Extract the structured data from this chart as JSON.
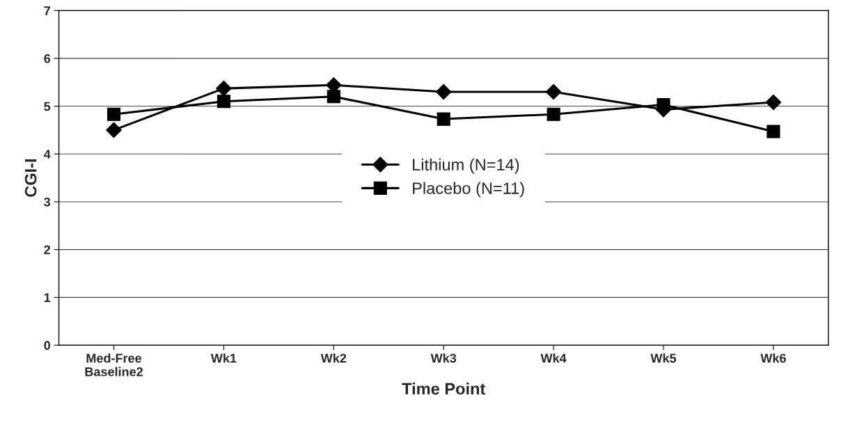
{
  "chart_data": {
    "type": "line",
    "xlabel": "Time Point",
    "ylabel": "CGI-I",
    "categories": [
      "Med-Free\nBaseline2",
      "Wk1",
      "Wk2",
      "Wk3",
      "Wk4",
      "Wk5",
      "Wk6"
    ],
    "series": [
      {
        "name": "Lithium (N=14)",
        "color": "#000000",
        "marker": "diamond",
        "values": [
          4.5,
          5.37,
          5.44,
          5.3,
          5.3,
          4.93,
          5.08
        ]
      },
      {
        "name": "Placebo (N=11)",
        "color": "#000000",
        "marker": "square",
        "values": [
          4.83,
          5.1,
          5.2,
          4.73,
          4.83,
          5.03,
          4.47
        ]
      }
    ],
    "ylim": [
      0,
      7
    ],
    "yticks": [
      0,
      1,
      2,
      3,
      4,
      5,
      6,
      7
    ],
    "grid": "y",
    "legend": "center",
    "line_style": "solid"
  }
}
